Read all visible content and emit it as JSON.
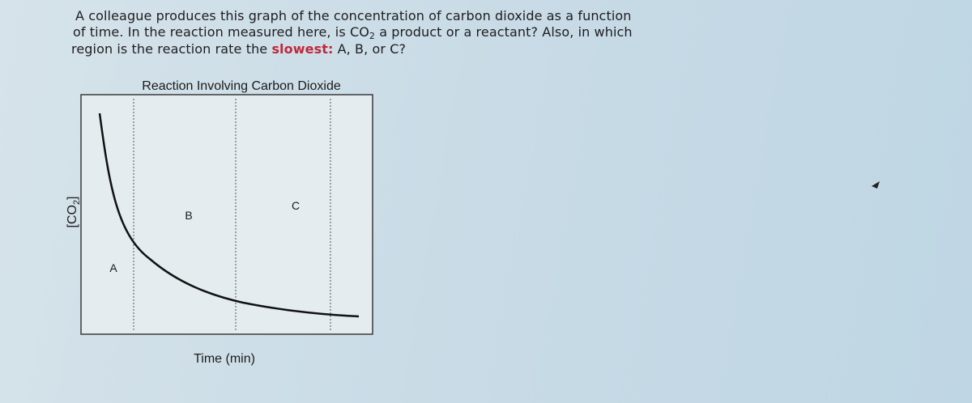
{
  "question": {
    "line1": "A colleague produces this graph of the concentration of carbon dioxide as a function",
    "line2_a": "of time. In the reaction measured here, is CO",
    "line2_sub": "2",
    "line2_b": " a product or a reactant? Also, in which",
    "line3_a": "region is the reaction rate the ",
    "line3_emph": "slowest:",
    "line3_b": " A, B, or C?"
  },
  "figure": {
    "title": "Reaction Involving Carbon Dioxide",
    "y_label_a": "[CO",
    "y_label_sub": "2",
    "y_label_b": "]",
    "x_label": "Time (min)",
    "regions": [
      "A",
      "B",
      "C"
    ]
  }
}
